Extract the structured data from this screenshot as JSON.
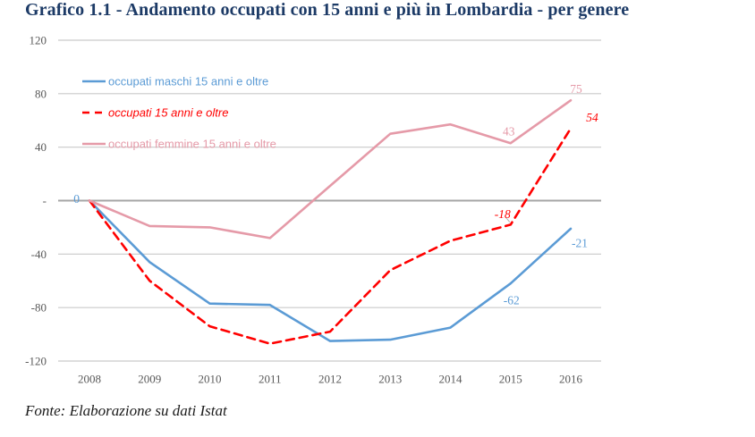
{
  "title": "Grafico 1.1 - Andamento occupati con 15 anni e più in Lombardia - per genere",
  "source": "Fonte: Elaborazione su dati Istat",
  "chart_data": {
    "type": "line",
    "title": "Grafico 1.1 - Andamento occupati con 15 anni e più in Lombardia - per genere",
    "categories": [
      "2008",
      "2009",
      "2010",
      "2011",
      "2012",
      "2013",
      "2014",
      "2015",
      "2016"
    ],
    "series": [
      {
        "id": "maschi",
        "name": "occupati maschi 15 anni e oltre",
        "color": "#5B9BD5",
        "dash": false,
        "italic": false,
        "values": [
          0,
          -46,
          -77,
          -78,
          -105,
          -104,
          -95,
          -62,
          -21
        ]
      },
      {
        "id": "totale",
        "name": "occupati 15 anni e oltre",
        "color": "#FF0000",
        "dash": true,
        "italic": true,
        "values": [
          0,
          -60,
          -94,
          -107,
          -98,
          -52,
          -30,
          -18,
          54
        ]
      },
      {
        "id": "femmine",
        "name": "occupati femmine 15 anni e oltre",
        "color": "#E59AA8",
        "dash": false,
        "italic": false,
        "values": [
          0,
          -19,
          -20,
          -28,
          11,
          50,
          57,
          43,
          75
        ]
      }
    ],
    "yticks": [
      120,
      80,
      40,
      0,
      -40,
      -80,
      -120
    ],
    "ylim": [
      -120,
      120
    ],
    "zero_tick_label": "-",
    "grid": "horizontal",
    "legend_position": "top-left-inside",
    "annotations": [
      {
        "series": 0,
        "year": "2008",
        "value": 0,
        "text": "0"
      },
      {
        "series": 0,
        "year": "2015",
        "value": -62,
        "text": "-62"
      },
      {
        "series": 0,
        "year": "2016",
        "value": -21,
        "text": "-21"
      },
      {
        "series": 1,
        "year": "2015",
        "value": -18,
        "text": "-18",
        "leader": true
      },
      {
        "series": 1,
        "year": "2016",
        "value": 54,
        "text": "54"
      },
      {
        "series": 2,
        "year": "2015",
        "value": 43,
        "text": "43"
      },
      {
        "series": 2,
        "year": "2016",
        "value": 75,
        "text": "75"
      }
    ]
  }
}
